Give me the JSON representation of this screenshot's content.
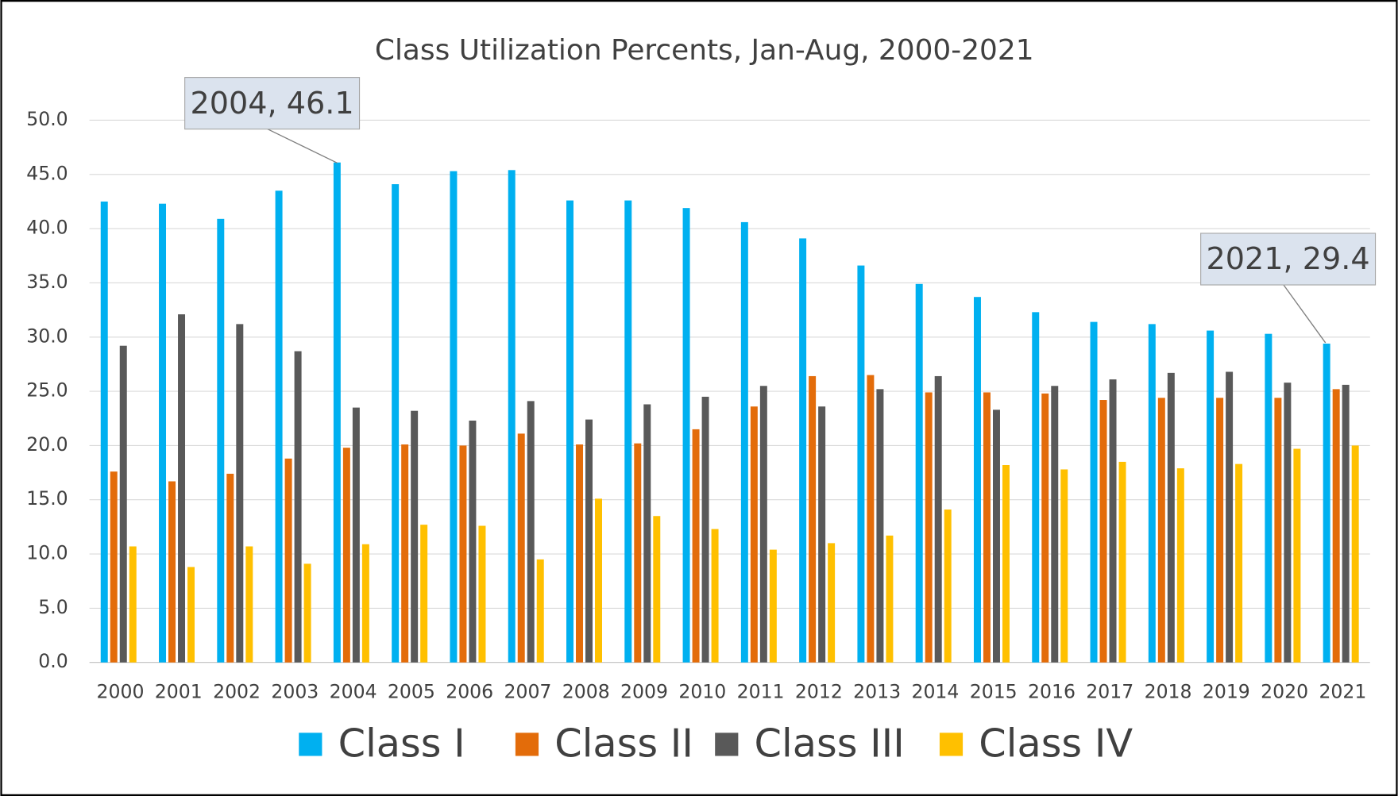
{
  "chart_data": {
    "type": "bar",
    "title": "Class Utilization Percents, Jan-Aug, 2000-2021",
    "categories": [
      "2000",
      "2001",
      "2002",
      "2003",
      "2004",
      "2005",
      "2006",
      "2007",
      "2008",
      "2009",
      "2010",
      "2011",
      "2012",
      "2013",
      "2014",
      "2015",
      "2016",
      "2017",
      "2018",
      "2019",
      "2020",
      "2021"
    ],
    "series": [
      {
        "name": "Class I",
        "color": "#00b0f0",
        "values": [
          42.5,
          42.3,
          40.9,
          43.5,
          46.1,
          44.1,
          45.3,
          45.4,
          42.6,
          42.6,
          41.9,
          40.6,
          39.1,
          36.6,
          34.9,
          33.7,
          32.3,
          31.4,
          31.2,
          30.6,
          30.3,
          29.4
        ]
      },
      {
        "name": "Class II",
        "color": "#e36c0a",
        "values": [
          17.6,
          16.7,
          17.4,
          18.8,
          19.8,
          20.1,
          20.0,
          21.1,
          20.1,
          20.2,
          21.5,
          23.6,
          26.4,
          26.5,
          24.9,
          24.9,
          24.8,
          24.2,
          24.4,
          24.4,
          24.4,
          25.2
        ]
      },
      {
        "name": "Class III",
        "color": "#595959",
        "values": [
          29.2,
          32.1,
          31.2,
          28.7,
          23.5,
          23.2,
          22.3,
          24.1,
          22.4,
          23.8,
          24.5,
          25.5,
          23.6,
          25.2,
          26.4,
          23.3,
          25.5,
          26.1,
          26.7,
          26.8,
          25.8,
          25.6
        ]
      },
      {
        "name": "Class IV",
        "color": "#ffc000",
        "values": [
          10.7,
          8.8,
          10.7,
          9.1,
          10.9,
          12.7,
          12.6,
          9.5,
          15.1,
          13.5,
          12.3,
          10.4,
          11.0,
          11.7,
          14.1,
          18.2,
          17.8,
          18.5,
          17.9,
          18.3,
          19.7,
          20.0
        ]
      }
    ],
    "ylim": [
      0,
      50
    ],
    "yticks": [
      {
        "value": 0,
        "label": "0.0"
      },
      {
        "value": 5,
        "label": "5.0"
      },
      {
        "value": 10,
        "label": "10.0"
      },
      {
        "value": 15,
        "label": "15.0"
      },
      {
        "value": 20,
        "label": "20.0"
      },
      {
        "value": 25,
        "label": "25.0"
      },
      {
        "value": 30,
        "label": "30.0"
      },
      {
        "value": 35,
        "label": "35.0"
      },
      {
        "value": 40,
        "label": "40.0"
      },
      {
        "value": 45,
        "label": "45.0"
      },
      {
        "value": 50,
        "label": "50.0"
      }
    ],
    "grid": true,
    "legend": "bottom",
    "annotations": [
      "2004, 46.1",
      "2021, 29.4"
    ]
  }
}
